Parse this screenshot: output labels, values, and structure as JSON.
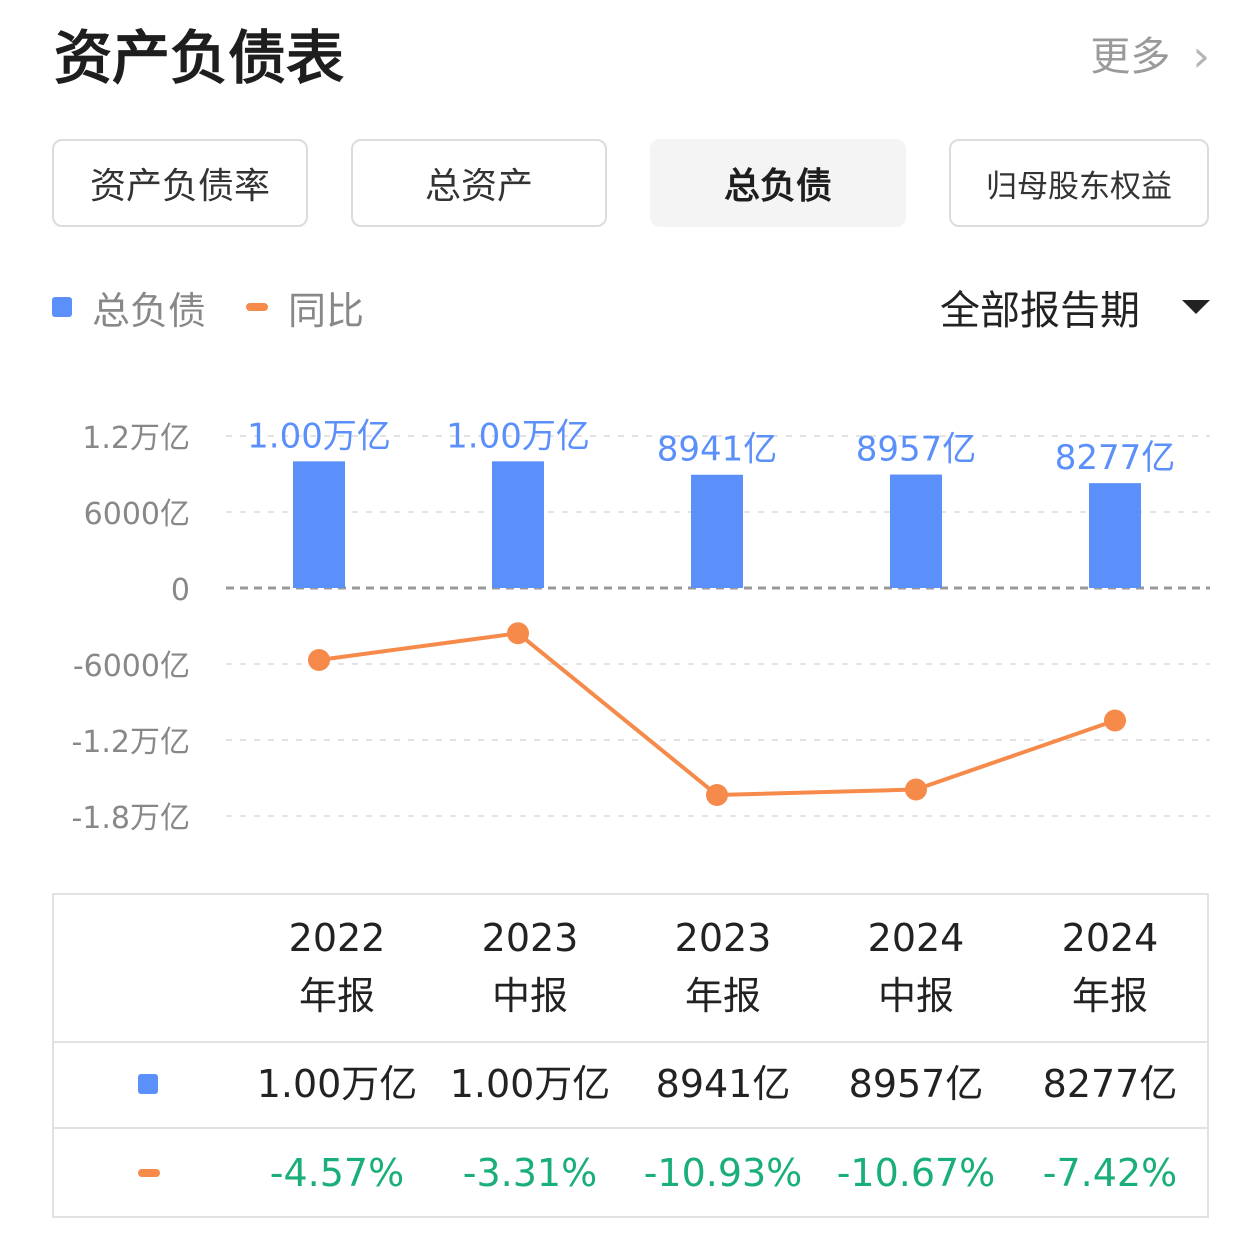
{
  "header": {
    "title": "资产负债表",
    "more_label": "更多",
    "more_icon": "chevron-right-icon"
  },
  "tabs": [
    {
      "label": "资产负债率",
      "active": false
    },
    {
      "label": "总资产",
      "active": false
    },
    {
      "label": "总负债",
      "active": true
    },
    {
      "label": "归母股东权益",
      "active": false
    }
  ],
  "legend": {
    "bar_label": "总负债",
    "line_label": "同比"
  },
  "period_selector": {
    "label": "全部报告期",
    "icon": "caret-down-icon"
  },
  "colors": {
    "bar": "#5b8ff9",
    "line": "#f58a4a",
    "bar_label": "#5b8ff9",
    "axis": "#888888",
    "positive_pct": "#1aaf78"
  },
  "chart_data": {
    "type": "bar+line",
    "categories": [
      "2022年报",
      "2023中报",
      "2023年报",
      "2024中报",
      "2024年报"
    ],
    "y_ticks": [
      {
        "value": 12000,
        "label": "1.2万亿"
      },
      {
        "value": 6000,
        "label": "6000亿"
      },
      {
        "value": 0,
        "label": "0"
      },
      {
        "value": -6000,
        "label": "-6000亿"
      },
      {
        "value": -12000,
        "label": "-1.2万亿"
      },
      {
        "value": -18000,
        "label": "-1.8万亿"
      }
    ],
    "ylim": [
      -18000,
      12000
    ],
    "grid": true,
    "series": [
      {
        "name": "总负债",
        "kind": "bar",
        "values": [
          10000,
          10000,
          8941,
          8957,
          8277
        ],
        "labels": [
          "1.00万亿",
          "1.00万亿",
          "8941亿",
          "8957亿",
          "8277亿"
        ]
      },
      {
        "name": "同比",
        "kind": "line",
        "values": [
          -4.57,
          -3.31,
          -10.93,
          -10.67,
          -7.42
        ]
      }
    ]
  },
  "table": {
    "columns": [
      {
        "year": "2022",
        "period": "年报"
      },
      {
        "year": "2023",
        "period": "中报"
      },
      {
        "year": "2023",
        "period": "年报"
      },
      {
        "year": "2024",
        "period": "中报"
      },
      {
        "year": "2024",
        "period": "年报"
      }
    ],
    "rows": [
      {
        "marker": "bar",
        "values": [
          "1.00万亿",
          "1.00万亿",
          "8941亿",
          "8957亿",
          "8277亿"
        ]
      },
      {
        "marker": "line",
        "values": [
          "-4.57%",
          "-3.31%",
          "-10.93%",
          "-10.67%",
          "-7.42%"
        ]
      }
    ]
  }
}
